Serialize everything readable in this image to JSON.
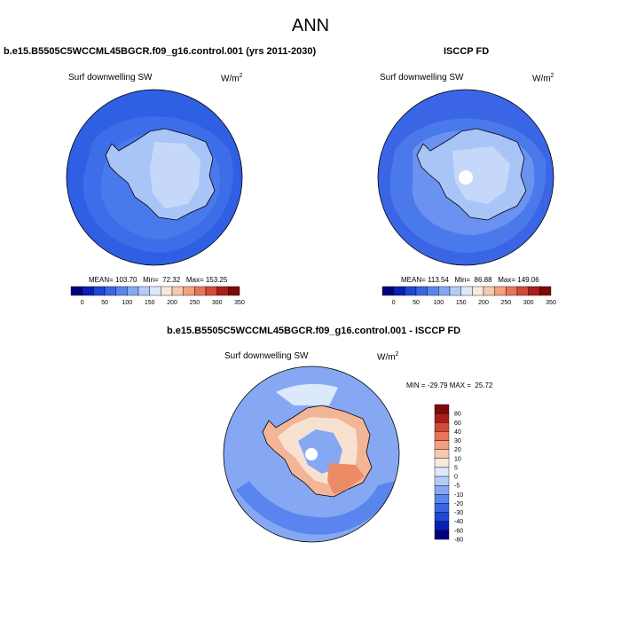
{
  "main_title": "ANN",
  "panels": [
    {
      "title": "b.e15.B5505C5WCCML45BGCR.f09_g16.control.001 (yrs 2011-2030)",
      "variable": "Surf downwelling SW",
      "units": "W/m",
      "units_exp": "2",
      "stats": "MEAN= 103.70   Min=  72.32   Max= 153.25"
    },
    {
      "title": "ISCCP FD",
      "variable": "Surf downwelling SW",
      "units": "W/m",
      "units_exp": "2",
      "stats": "MEAN= 113.54   Min=  86.88   Max= 149.06"
    },
    {
      "title": "b.e15.B5505C5WCCML45BGCR.f09_g16.control.001 - ISCCP FD",
      "variable": "Surf downwelling SW",
      "units": "W/m",
      "units_exp": "2",
      "stats": "MIN = -29.79 MAX =  25.72"
    }
  ],
  "abs_colorbar": {
    "colors": [
      "#00007f",
      "#0a1fb4",
      "#1f45d9",
      "#3a66e6",
      "#5a85ee",
      "#86a8f3",
      "#b4cdf8",
      "#dce8fb",
      "#f7e9dc",
      "#f7c9ad",
      "#f2a07f",
      "#e8755a",
      "#d24a38",
      "#a81f1a",
      "#7d0a0a"
    ],
    "labels": [
      "0",
      "50",
      "100",
      "150",
      "200",
      "250",
      "300",
      "350"
    ]
  },
  "diff_colorbar": {
    "colors": [
      "#00007f",
      "#0a1fb4",
      "#1f45d9",
      "#3a66e6",
      "#5a85ee",
      "#86a8f3",
      "#b4cdf8",
      "#dce8fb",
      "#f7e9dc",
      "#f7c9ad",
      "#f2a07f",
      "#e8755a",
      "#d24a38",
      "#a81f1a",
      "#7d0a0a"
    ],
    "labels": [
      "80",
      "60",
      "40",
      "30",
      "20",
      "10",
      "5",
      "0",
      "-5",
      "-10",
      "-20",
      "-30",
      "-40",
      "-60",
      "-80"
    ]
  },
  "map_colors": {
    "ocean_dark": "#2f5fe3",
    "ocean_mid": "#4a79ec",
    "ocean_light": "#6b92f0",
    "land_light": "#a9c4f6",
    "land_pale": "#c6d8fa",
    "land_white": "#ffffff",
    "diff_warm1": "#f7e2d2",
    "diff_warm2": "#f3b597",
    "diff_warm3": "#ec8c66",
    "diff_cool1": "#dce8fb",
    "diff_cool2": "#86a8f3",
    "diff_cool3": "#3a66e6"
  }
}
